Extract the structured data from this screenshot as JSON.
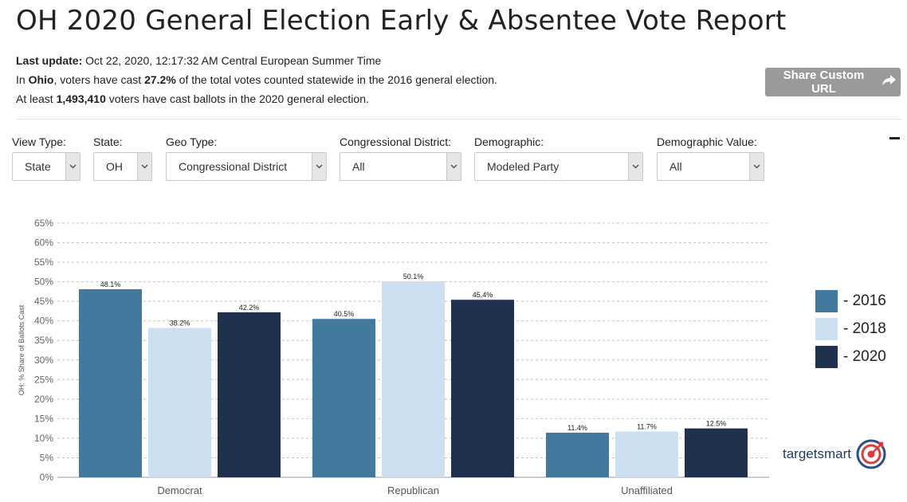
{
  "header": {
    "title": "OH 2020 General Election Early & Absentee Vote Report",
    "last_update_label": "Last update:",
    "last_update_value": "Oct 22, 2020, 12:17:32 AM Central European Summer Time",
    "line2_prefix": "In",
    "line2_state": "Ohio",
    "line2_mid": ", voters have cast",
    "line2_pct": "27.2%",
    "line2_suffix": "of the total votes counted statewide in the 2016 general election.",
    "line3_prefix": "At least",
    "line3_count": "1,493,410",
    "line3_suffix": "voters have cast ballots in the 2020 general election.",
    "share_label": "Share Custom URL"
  },
  "filters": [
    {
      "label": "View Type:",
      "value": "State"
    },
    {
      "label": "State:",
      "value": "OH"
    },
    {
      "label": "Geo Type:",
      "value": "Congressional District"
    },
    {
      "label": "Congressional District:",
      "value": "All"
    },
    {
      "label": "Demographic:",
      "value": "Modeled Party"
    },
    {
      "label": "Demographic Value:",
      "value": "All"
    }
  ],
  "chart_data": {
    "type": "bar",
    "ylabel": "OH: % Share of Ballots Cast",
    "ylim": [
      0,
      65
    ],
    "ytick_step": 5,
    "y_unit": "%",
    "grid": true,
    "legend_position": "right",
    "categories": [
      "Democrat",
      "Republican",
      "Unaffiliated"
    ],
    "series": [
      {
        "name": "- 2016",
        "color": "#44799e",
        "values": [
          48.1,
          40.5,
          11.4
        ],
        "labels": [
          "48.1%",
          "40.5%",
          "11.4%"
        ]
      },
      {
        "name": "- 2018",
        "color": "#cedff0",
        "values": [
          38.2,
          50.1,
          11.7
        ],
        "labels": [
          "38.2%",
          "50.1%",
          "11.7%"
        ]
      },
      {
        "name": "- 2020",
        "color": "#20314f",
        "values": [
          42.2,
          45.4,
          12.5
        ],
        "labels": [
          "42.2%",
          "45.4%",
          "12.5%"
        ]
      }
    ]
  },
  "brand": {
    "name": "targetsmart"
  }
}
